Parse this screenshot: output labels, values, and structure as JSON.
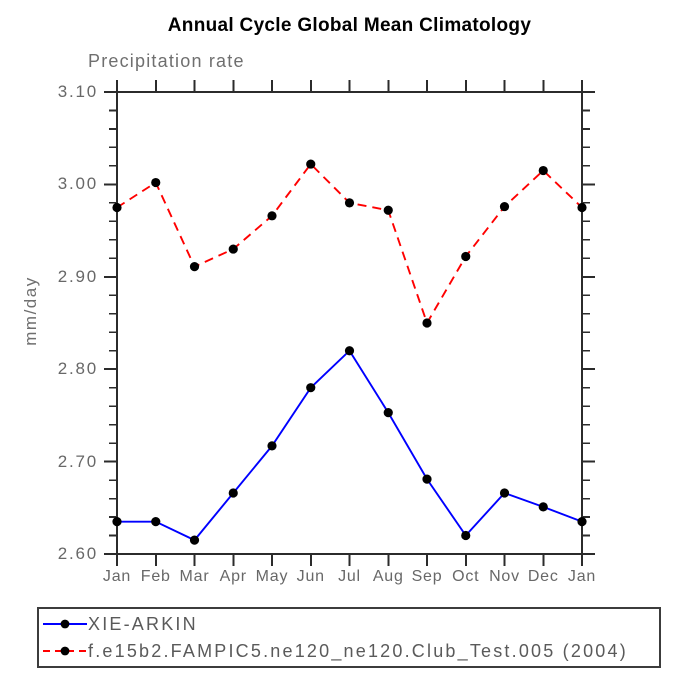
{
  "title": "Annual Cycle Global Mean Climatology",
  "subtitle": "Precipitation rate",
  "ylabel": "mm/day",
  "colors": {
    "axis": "#2b2b2b",
    "tick_text": "#686868",
    "series_obs": "#0000ff",
    "series_model": "#ff0000",
    "marker": "#000000",
    "legend_border": "#3c3c3c"
  },
  "chart_data": {
    "type": "line",
    "title": "Annual Cycle Global Mean Climatology",
    "subtitle": "Precipitation rate",
    "xlabel": "",
    "ylabel": "mm/day",
    "categories": [
      "Jan",
      "Feb",
      "Mar",
      "Apr",
      "May",
      "Jun",
      "Jul",
      "Aug",
      "Sep",
      "Oct",
      "Nov",
      "Dec",
      "Jan"
    ],
    "series": [
      {
        "name": "XIE-ARKIN",
        "color": "#0000ff",
        "line_style": "solid",
        "marker": "black-dot",
        "values": [
          2.635,
          2.635,
          2.615,
          2.666,
          2.717,
          2.78,
          2.82,
          2.753,
          2.681,
          2.62,
          2.666,
          2.651,
          2.635
        ]
      },
      {
        "name": "f.e15b2.FAMPIC5.ne120_ne120.Club_Test.005 (2004)",
        "color": "#ff0000",
        "line_style": "dashed",
        "marker": "black-dot",
        "values": [
          2.975,
          3.002,
          2.911,
          2.93,
          2.966,
          3.022,
          2.98,
          2.972,
          2.85,
          2.922,
          2.976,
          3.015,
          2.975
        ]
      }
    ],
    "marker_color": "#000000",
    "ylim": [
      2.6,
      3.1
    ],
    "ytick_major": 0.1,
    "ytick_minor": 0.02,
    "ytick_labels": [
      "2.60",
      "2.70",
      "2.80",
      "2.90",
      "3.00",
      "3.10"
    ],
    "grid": false,
    "legend_position": "bottom-left-box"
  }
}
